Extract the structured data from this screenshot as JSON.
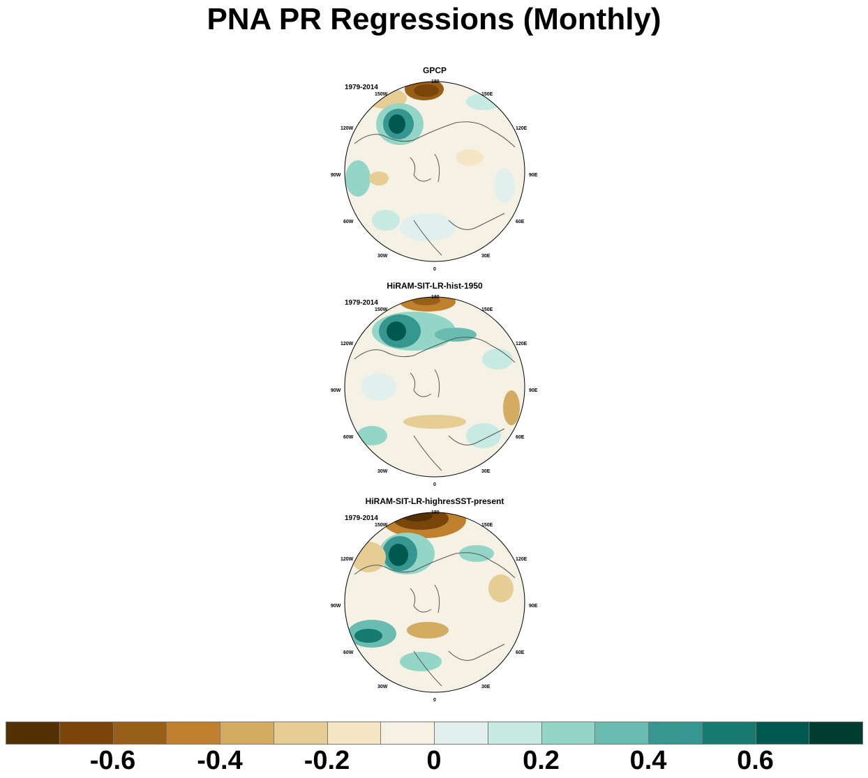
{
  "title": "PNA PR Regressions (Monthly)",
  "panels": [
    {
      "title": "GPCP",
      "period": "1979-2014"
    },
    {
      "title": "HiRAM-SIT-LR-hist-1950",
      "period": "1979-2014"
    },
    {
      "title": "HiRAM-SIT-LR-highresSST-present",
      "period": "1979-2014"
    }
  ],
  "longitude_labels": [
    "180",
    "150E",
    "120E",
    "90E",
    "60E",
    "30E",
    "0",
    "30W",
    "60W",
    "90W",
    "120W",
    "150W"
  ],
  "colorbar": {
    "colors": [
      "#543005",
      "#7a4509",
      "#985f19",
      "#bf812d",
      "#d4ab62",
      "#e6cd94",
      "#f5e7c6",
      "#f5f1e4",
      "#e1f0ec",
      "#c7eae3",
      "#93d5c7",
      "#69bcaf",
      "#35978f",
      "#167a71",
      "#01584e",
      "#003c30"
    ],
    "tick_labels": [
      "-0.6",
      "-0.4",
      "-0.2",
      "0",
      "0.2",
      "0.4",
      "0.6"
    ]
  }
}
